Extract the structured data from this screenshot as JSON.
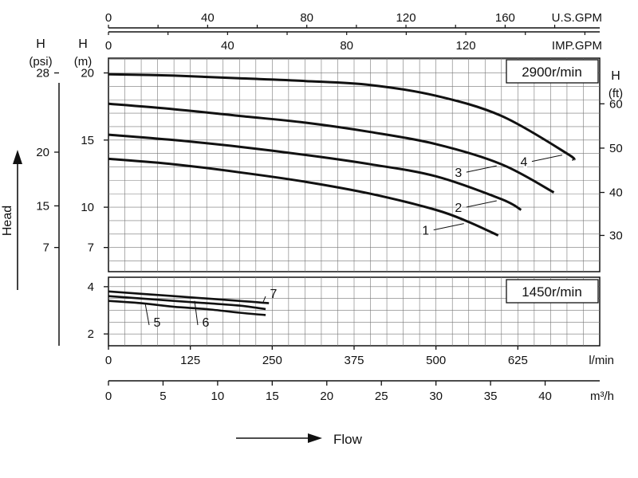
{
  "chart_data": [
    {
      "type": "line",
      "title": "",
      "speed_label": "2900r/min",
      "xlabel": "l/min",
      "x_unit_label": "l/min",
      "xlim": [
        0,
        750
      ],
      "x_ticks": [
        0,
        125,
        250,
        375,
        500,
        625
      ],
      "top_axes": [
        {
          "unit_label": "U.S.GPM",
          "ticks": [
            0,
            40,
            80,
            120,
            160
          ],
          "gpm_factor": 3.785
        },
        {
          "unit_label": "IMP.GPM",
          "ticks": [
            0,
            40,
            80,
            120
          ],
          "gpm_factor": 4.546
        }
      ],
      "y_axis_m": {
        "header": "H",
        "unit": "(m)",
        "ticks": [
          7,
          10,
          15,
          20
        ],
        "range": [
          5.2,
          21.1
        ]
      },
      "y_axis_psi": {
        "header": "H",
        "unit": "(psi)",
        "ticks": [
          {
            "value": 28,
            "m": 20
          },
          {
            "value": 20,
            "m": 14.1
          },
          {
            "value": 15,
            "m": 10.1
          },
          {
            "value": 7,
            "m": 7
          }
        ]
      },
      "y_axis_ft": {
        "header": "H",
        "unit": "(ft)",
        "ticks": [
          {
            "value": 60,
            "m": 17.7
          },
          {
            "value": 50,
            "m": 14.4
          },
          {
            "value": 40,
            "m": 11.1
          },
          {
            "value": 30,
            "m": 7.9
          }
        ]
      },
      "series": [
        {
          "name": "1",
          "x": [
            0,
            100,
            200,
            300,
            400,
            500,
            550,
            595
          ],
          "y": [
            13.6,
            13.2,
            12.6,
            11.9,
            11.0,
            9.8,
            8.9,
            7.9
          ]
        },
        {
          "name": "2",
          "x": [
            0,
            100,
            200,
            300,
            400,
            500,
            600,
            630
          ],
          "y": [
            15.4,
            15.0,
            14.5,
            13.9,
            13.2,
            12.3,
            10.6,
            9.8
          ]
        },
        {
          "name": "3",
          "x": [
            0,
            100,
            200,
            300,
            400,
            500,
            600,
            680
          ],
          "y": [
            17.7,
            17.3,
            16.8,
            16.3,
            15.6,
            14.7,
            13.2,
            11.1
          ]
        },
        {
          "name": "4",
          "x": [
            0,
            100,
            200,
            300,
            400,
            500,
            600,
            700,
            710
          ],
          "y": [
            19.9,
            19.8,
            19.6,
            19.4,
            19.1,
            18.3,
            16.8,
            14.0,
            13.5
          ]
        }
      ],
      "ylabel": "Head"
    },
    {
      "type": "line",
      "speed_label": "1450r/min",
      "xlim": [
        0,
        750
      ],
      "y_axis_m": {
        "ticks": [
          2,
          4
        ],
        "range": [
          1.5,
          4.4
        ]
      },
      "series": [
        {
          "name": "5",
          "x": [
            0,
            50,
            100,
            150,
            200,
            240
          ],
          "y": [
            3.4,
            3.3,
            3.15,
            3.05,
            2.9,
            2.8
          ]
        },
        {
          "name": "6",
          "x": [
            0,
            50,
            100,
            150,
            200,
            240
          ],
          "y": [
            3.6,
            3.5,
            3.4,
            3.3,
            3.2,
            3.05
          ]
        },
        {
          "name": "7",
          "x": [
            0,
            50,
            100,
            150,
            200,
            245
          ],
          "y": [
            3.8,
            3.7,
            3.6,
            3.5,
            3.4,
            3.3
          ]
        }
      ]
    }
  ],
  "bottom_axis": {
    "unit_label": "m³/h",
    "ticks": [
      0,
      5,
      10,
      15,
      20,
      25,
      30,
      35,
      40
    ],
    "lmin_per_unit": 16.6667
  },
  "flow_label": "Flow"
}
